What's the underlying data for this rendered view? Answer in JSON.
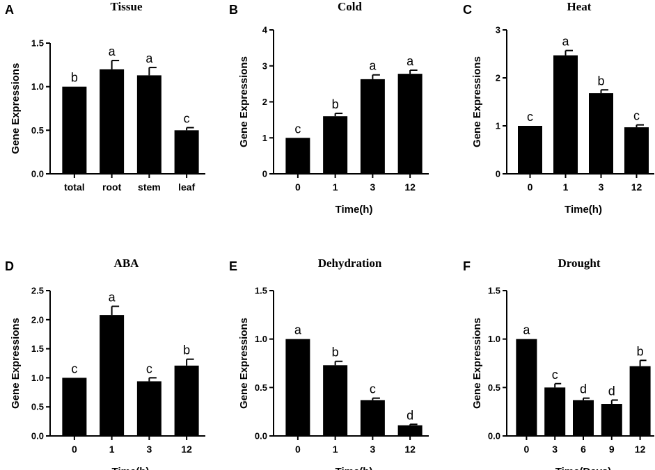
{
  "figure": {
    "ylabel_common": "Gene Expressions"
  },
  "chart_data": [
    {
      "letter": "A",
      "type": "bar",
      "title": "Tissue",
      "xlabel": "",
      "ylabel": "Gene Expressions",
      "categories": [
        "total",
        "root",
        "stem",
        "leaf"
      ],
      "values": [
        1.0,
        1.2,
        1.13,
        0.5
      ],
      "errors": [
        0.0,
        0.1,
        0.09,
        0.03
      ],
      "labels": [
        "b",
        "a",
        "a",
        "c"
      ],
      "ylim": [
        0,
        1.5
      ],
      "yticks": [
        0.0,
        0.5,
        1.0,
        1.5
      ],
      "ytick_labels": [
        "0.0",
        "0.5",
        "1.0",
        "1.5"
      ]
    },
    {
      "letter": "B",
      "type": "bar",
      "title": "Cold",
      "xlabel": "Time(h)",
      "ylabel": "Gene Expressions",
      "categories": [
        "0",
        "1",
        "3",
        "12"
      ],
      "values": [
        1.0,
        1.6,
        2.63,
        2.78
      ],
      "errors": [
        0.0,
        0.08,
        0.12,
        0.1
      ],
      "labels": [
        "c",
        "b",
        "a",
        "a"
      ],
      "ylim": [
        0,
        4
      ],
      "yticks": [
        0,
        1,
        2,
        3,
        4
      ],
      "ytick_labels": [
        "0",
        "1",
        "2",
        "3",
        "4"
      ]
    },
    {
      "letter": "C",
      "type": "bar",
      "title": "Heat",
      "xlabel": "Time(h)",
      "ylabel": "Gene Expressions",
      "categories": [
        "0",
        "1",
        "3",
        "12"
      ],
      "values": [
        1.0,
        2.47,
        1.68,
        0.97
      ],
      "errors": [
        0.0,
        0.1,
        0.07,
        0.05
      ],
      "labels": [
        "c",
        "a",
        "b",
        "c"
      ],
      "ylim": [
        0,
        3
      ],
      "yticks": [
        0,
        1,
        2,
        3
      ],
      "ytick_labels": [
        "0",
        "1",
        "2",
        "3"
      ]
    },
    {
      "letter": "D",
      "type": "bar",
      "title": "ABA",
      "xlabel": "Time(h)",
      "ylabel": "Gene Expressions",
      "categories": [
        "0",
        "1",
        "3",
        "12"
      ],
      "values": [
        1.0,
        2.08,
        0.94,
        1.21
      ],
      "errors": [
        0.0,
        0.15,
        0.06,
        0.11
      ],
      "labels": [
        "c",
        "a",
        "c",
        "b"
      ],
      "ylim": [
        0,
        2.5
      ],
      "yticks": [
        0.0,
        0.5,
        1.0,
        1.5,
        2.0,
        2.5
      ],
      "ytick_labels": [
        "0.0",
        "0.5",
        "1.0",
        "1.5",
        "2.0",
        "2.5"
      ]
    },
    {
      "letter": "E",
      "type": "bar",
      "title": "Dehydration",
      "xlabel": "Time(h)",
      "ylabel": "Gene Expressions",
      "categories": [
        "0",
        "1",
        "3",
        "12"
      ],
      "values": [
        1.0,
        0.73,
        0.37,
        0.11
      ],
      "errors": [
        0.0,
        0.04,
        0.02,
        0.01
      ],
      "labels": [
        "a",
        "b",
        "c",
        "d"
      ],
      "ylim": [
        0,
        1.5
      ],
      "yticks": [
        0.0,
        0.5,
        1.0,
        1.5
      ],
      "ytick_labels": [
        "0.0",
        "0.5",
        "1.0",
        "1.5"
      ]
    },
    {
      "letter": "F",
      "type": "bar",
      "title": "Drought",
      "xlabel": "Time(Days)",
      "ylabel": "Gene Expressions",
      "categories": [
        "0",
        "3",
        "6",
        "9",
        "12"
      ],
      "values": [
        1.0,
        0.5,
        0.37,
        0.33,
        0.72
      ],
      "errors": [
        0.0,
        0.04,
        0.02,
        0.04,
        0.06
      ],
      "labels": [
        "a",
        "c",
        "d",
        "d",
        "b"
      ],
      "ylim": [
        0,
        1.5
      ],
      "yticks": [
        0.0,
        0.5,
        1.0,
        1.5
      ],
      "ytick_labels": [
        "0.0",
        "0.5",
        "1.0",
        "1.5"
      ]
    }
  ]
}
